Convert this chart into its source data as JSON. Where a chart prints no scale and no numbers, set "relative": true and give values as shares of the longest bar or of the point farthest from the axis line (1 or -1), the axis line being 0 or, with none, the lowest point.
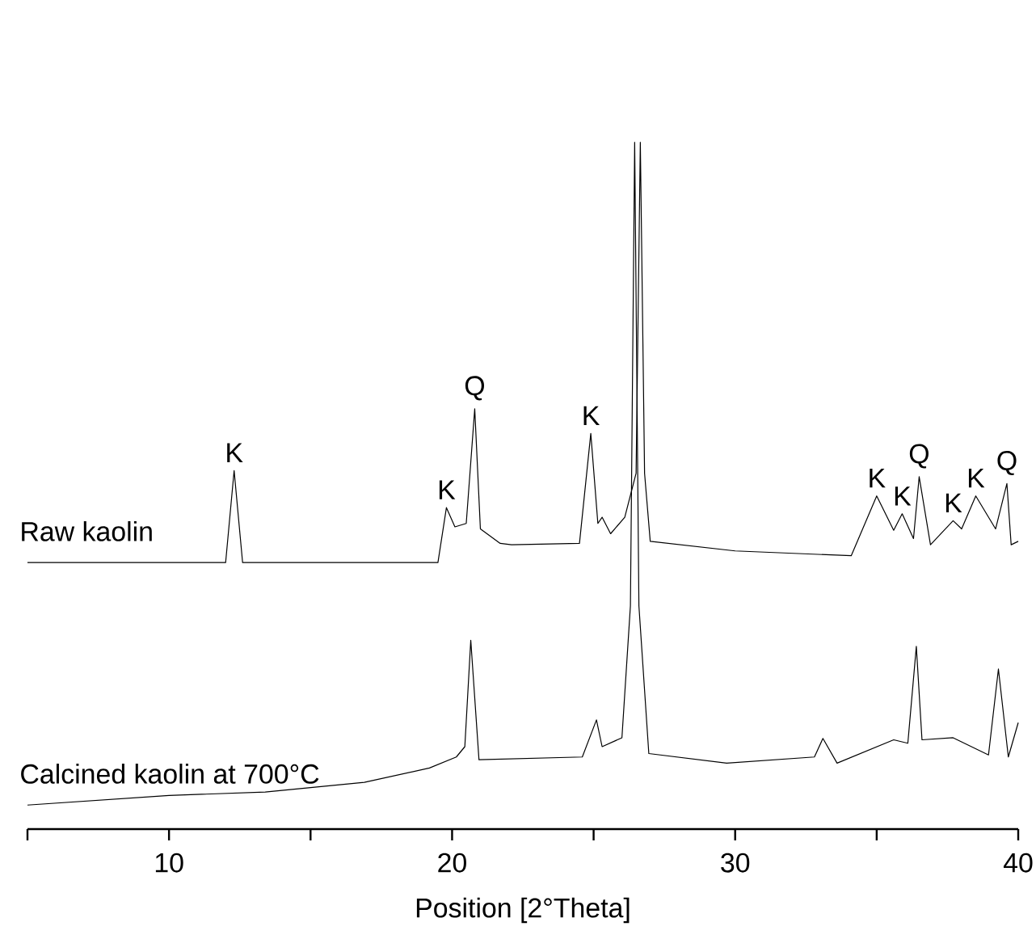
{
  "chart_data": {
    "type": "line",
    "relative": true,
    "xlabel": "Position [2°Theta]",
    "xlim": [
      5,
      40
    ],
    "xticks": [
      {
        "value": 5,
        "label": null
      },
      10,
      {
        "value": 15,
        "label": null
      },
      20,
      {
        "value": 25,
        "label": null
      },
      30,
      {
        "value": 35,
        "label": null
      },
      40
    ],
    "tick_labels": "x",
    "marker": "none",
    "line_style": "solid",
    "series": [
      {
        "name": "Raw kaolin",
        "color": "#000000",
        "x": [
          5,
          12.0,
          12.3,
          12.6,
          19.5,
          19.8,
          20.1,
          20.5,
          20.8,
          21.0,
          21.7,
          22.1,
          24.5,
          24.9,
          25.15,
          25.3,
          25.6,
          26.1,
          26.5,
          26.65,
          26.8,
          27.0,
          30,
          34.1,
          35.0,
          35.6,
          35.9,
          36.3,
          36.5,
          36.9,
          37.7,
          38.0,
          38.5,
          39.2,
          39.6,
          39.75,
          40
        ],
        "values": [
          0.388,
          0.388,
          0.522,
          0.388,
          0.388,
          0.468,
          0.44,
          0.445,
          0.612,
          0.437,
          0.416,
          0.414,
          0.416,
          0.576,
          0.445,
          0.454,
          0.43,
          0.454,
          0.518,
          1,
          0.518,
          0.419,
          0.405,
          0.398,
          0.485,
          0.435,
          0.459,
          0.423,
          0.513,
          0.414,
          0.449,
          0.437,
          0.485,
          0.437,
          0.503,
          0.414,
          0.419
        ]
      },
      {
        "name": "Calcined kaolin at 700°C",
        "color": "#000000",
        "x": [
          5,
          10,
          13.4,
          16.9,
          19.2,
          20.15,
          20.45,
          20.66,
          20.95,
          24.6,
          25.1,
          25.3,
          26.0,
          26.3,
          26.45,
          26.6,
          26.95,
          29.7,
          32.8,
          33.1,
          33.6,
          35.6,
          36.1,
          36.4,
          36.6,
          37.7,
          38.95,
          39.3,
          39.65,
          40
        ],
        "values": [
          0.035,
          0.049,
          0.054,
          0.068,
          0.089,
          0.105,
          0.12,
          0.275,
          0.101,
          0.105,
          0.159,
          0.12,
          0.133,
          0.325,
          1,
          0.325,
          0.11,
          0.096,
          0.105,
          0.132,
          0.096,
          0.13,
          0.125,
          0.266,
          0.13,
          0.133,
          0.108,
          0.233,
          0.105,
          0.155
        ]
      }
    ],
    "annotations": [
      {
        "text": "K",
        "x": 12.3,
        "y": 0.522
      },
      {
        "text": "K",
        "x": 19.8,
        "y": 0.468
      },
      {
        "text": "Q",
        "x": 20.8,
        "y": 0.612
      },
      {
        "text": "K",
        "x": 24.9,
        "y": 0.576
      },
      {
        "text": "K",
        "x": 35.0,
        "y": 0.485
      },
      {
        "text": "K",
        "x": 35.9,
        "y": 0.459
      },
      {
        "text": "Q",
        "x": 36.5,
        "y": 0.513
      },
      {
        "text": "K",
        "x": 37.7,
        "y": 0.449
      },
      {
        "text": "K",
        "x": 38.5,
        "y": 0.485
      },
      {
        "text": "Q",
        "x": 39.6,
        "y": 0.503
      }
    ]
  }
}
